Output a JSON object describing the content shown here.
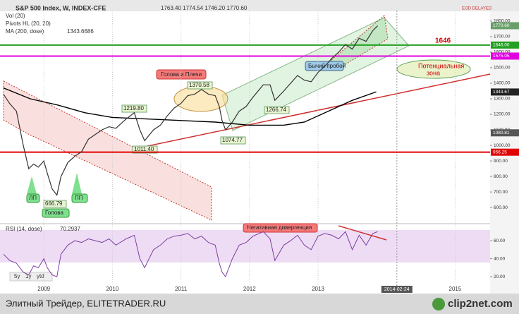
{
  "header": {
    "title": "S&P 500 Index, W, INDEX-CFE",
    "ohlc": "1763.40 1774.54 1746.20 1770.60",
    "indicators": [
      "Vol (20)",
      "Pivots HL (20, 20)"
    ],
    "status": "EOD DELAYED"
  },
  "chart_data": [
    {
      "type": "line",
      "name": "price",
      "x": [
        2008.41,
        2008.5,
        2008.6,
        2008.7,
        2008.78,
        2008.85,
        2008.92,
        2009.0,
        2009.05,
        2009.12,
        2009.19,
        2009.25,
        2009.35,
        2009.45,
        2009.55,
        2009.65,
        2009.75,
        2009.85,
        2009.95,
        2010.05,
        2010.2,
        2010.32,
        2010.4,
        2010.47,
        2010.6,
        2010.7,
        2010.8,
        2010.9,
        2011.0,
        2011.1,
        2011.2,
        2011.3,
        2011.4,
        2011.5,
        2011.56,
        2011.6,
        2011.65,
        2011.75,
        2011.85,
        2011.95,
        2012.05,
        2012.2,
        2012.3,
        2012.37,
        2012.5,
        2012.6,
        2012.7,
        2012.8,
        2012.9,
        2013.0,
        2013.1,
        2013.2,
        2013.3,
        2013.4,
        2013.5,
        2013.6,
        2013.7,
        2013.8,
        2013.87
      ],
      "values": [
        1330,
        1270,
        1220,
        1000,
        850,
        880,
        860,
        900,
        820,
        720,
        680,
        800,
        890,
        930,
        960,
        1040,
        1070,
        1100,
        1120,
        1110,
        1170,
        1210,
        1100,
        1030,
        1100,
        1130,
        1190,
        1240,
        1270,
        1320,
        1330,
        1360,
        1330,
        1320,
        1250,
        1160,
        1100,
        1150,
        1220,
        1250,
        1310,
        1390,
        1390,
        1290,
        1350,
        1400,
        1450,
        1420,
        1410,
        1470,
        1510,
        1560,
        1600,
        1650,
        1620,
        1690,
        1670,
        1740,
        1770
      ],
      "color": "#333333",
      "ma": {
        "name": "MA (200, dose)",
        "value_label": "1343.6686",
        "color": "#000000",
        "x": [
          2008.41,
          2008.8,
          2009.2,
          2009.6,
          2010.0,
          2010.5,
          2011.0,
          2011.5,
          2012.0,
          2012.5,
          2012.8,
          2013.2,
          2013.5,
          2013.85
        ],
        "values": [
          1370,
          1300,
          1260,
          1210,
          1180,
          1170,
          1160,
          1150,
          1130,
          1130,
          1150,
          1230,
          1290,
          1345
        ]
      },
      "xlim": [
        2008.36,
        2015.51
      ],
      "xticks": [
        2009,
        2010,
        2011,
        2012,
        2013,
        2015
      ],
      "cursor": {
        "value": 2014.15,
        "label": "2014-02-24"
      },
      "ylim": [
        505,
        1868
      ],
      "yticks": [
        {
          "value": 1800,
          "label": "1800.00"
        },
        {
          "value": 1700,
          "label": "1700.00"
        },
        {
          "value": 1600,
          "label": "1600.00"
        },
        {
          "value": 1500,
          "label": "1500.00"
        },
        {
          "value": 1400,
          "label": "1400.00"
        },
        {
          "value": 1300,
          "label": "1300.00"
        },
        {
          "value": 1200,
          "label": "1200.00"
        },
        {
          "value": 1100,
          "label": "1100.00"
        },
        {
          "value": 1000,
          "label": "1000.00"
        },
        {
          "value": 900,
          "label": "900.00"
        },
        {
          "value": 800,
          "label": "800.00"
        },
        {
          "value": 700,
          "label": "700.00"
        },
        {
          "value": 600,
          "label": "600.00"
        }
      ],
      "levels": [
        {
          "value": 956.25,
          "label": "956.25",
          "color": "#e00000"
        },
        {
          "value": 1575.05,
          "label": "1575.05",
          "color": "#e000e0"
        },
        {
          "value": 1646,
          "label": "1646.00",
          "color": "#22a022"
        }
      ],
      "price_tags": [
        {
          "value": 1770.6,
          "label": "1770.60",
          "color": "#6a9f6a"
        },
        {
          "value": 1343.67,
          "label": "1343.67",
          "color": "#222222"
        },
        {
          "value": 1080.81,
          "label": "1080.81",
          "color": "#555555"
        }
      ],
      "annotations": [
        "1219.80",
        "1011.40",
        "1370.58",
        "1074.77",
        "1266.74",
        "666.79",
        "Голова и Плечи",
        "Бычий пробой",
        "1646",
        "Потенциальная",
        "зона",
        "ЛП",
        "Голова",
        "ПП",
        "Негативная дивергенция"
      ]
    },
    {
      "type": "line",
      "name": "RSI (14, dose)",
      "value_label": "70.2937",
      "color": "#7b3fa0",
      "x": [
        2008.41,
        2008.5,
        2008.6,
        2008.7,
        2008.78,
        2008.85,
        2008.92,
        2009.0,
        2009.05,
        2009.12,
        2009.19,
        2009.25,
        2009.35,
        2009.45,
        2009.55,
        2009.65,
        2009.75,
        2009.85,
        2009.95,
        2010.05,
        2010.2,
        2010.32,
        2010.4,
        2010.47,
        2010.6,
        2010.7,
        2010.8,
        2010.9,
        2011.0,
        2011.1,
        2011.2,
        2011.3,
        2011.4,
        2011.5,
        2011.56,
        2011.6,
        2011.65,
        2011.75,
        2011.85,
        2011.95,
        2012.05,
        2012.2,
        2012.3,
        2012.37,
        2012.5,
        2012.6,
        2012.7,
        2012.8,
        2012.9,
        2013.0,
        2013.1,
        2013.2,
        2013.3,
        2013.4,
        2013.5,
        2013.6,
        2013.7,
        2013.8,
        2013.87
      ],
      "values": [
        45,
        38,
        35,
        25,
        22,
        32,
        30,
        40,
        30,
        22,
        20,
        45,
        55,
        60,
        58,
        62,
        60,
        58,
        62,
        55,
        62,
        66,
        40,
        30,
        50,
        55,
        62,
        65,
        66,
        68,
        62,
        65,
        58,
        55,
        35,
        25,
        20,
        40,
        55,
        58,
        65,
        70,
        62,
        38,
        55,
        60,
        66,
        55,
        50,
        65,
        68,
        66,
        62,
        70,
        50,
        66,
        55,
        68,
        70
      ],
      "ylim": [
        6,
        76.5
      ],
      "yticks": [
        {
          "value": 60,
          "label": "60.00"
        },
        {
          "value": 40,
          "label": "40.00"
        },
        {
          "value": 20,
          "label": "20.00"
        }
      ]
    }
  ],
  "zoom_buttons": [
    "5y",
    "1y",
    "ytd"
  ],
  "footer": {
    "caption": "Элитный Трейдер, ELITETRADER.RU",
    "logo": "clip2net.com"
  }
}
